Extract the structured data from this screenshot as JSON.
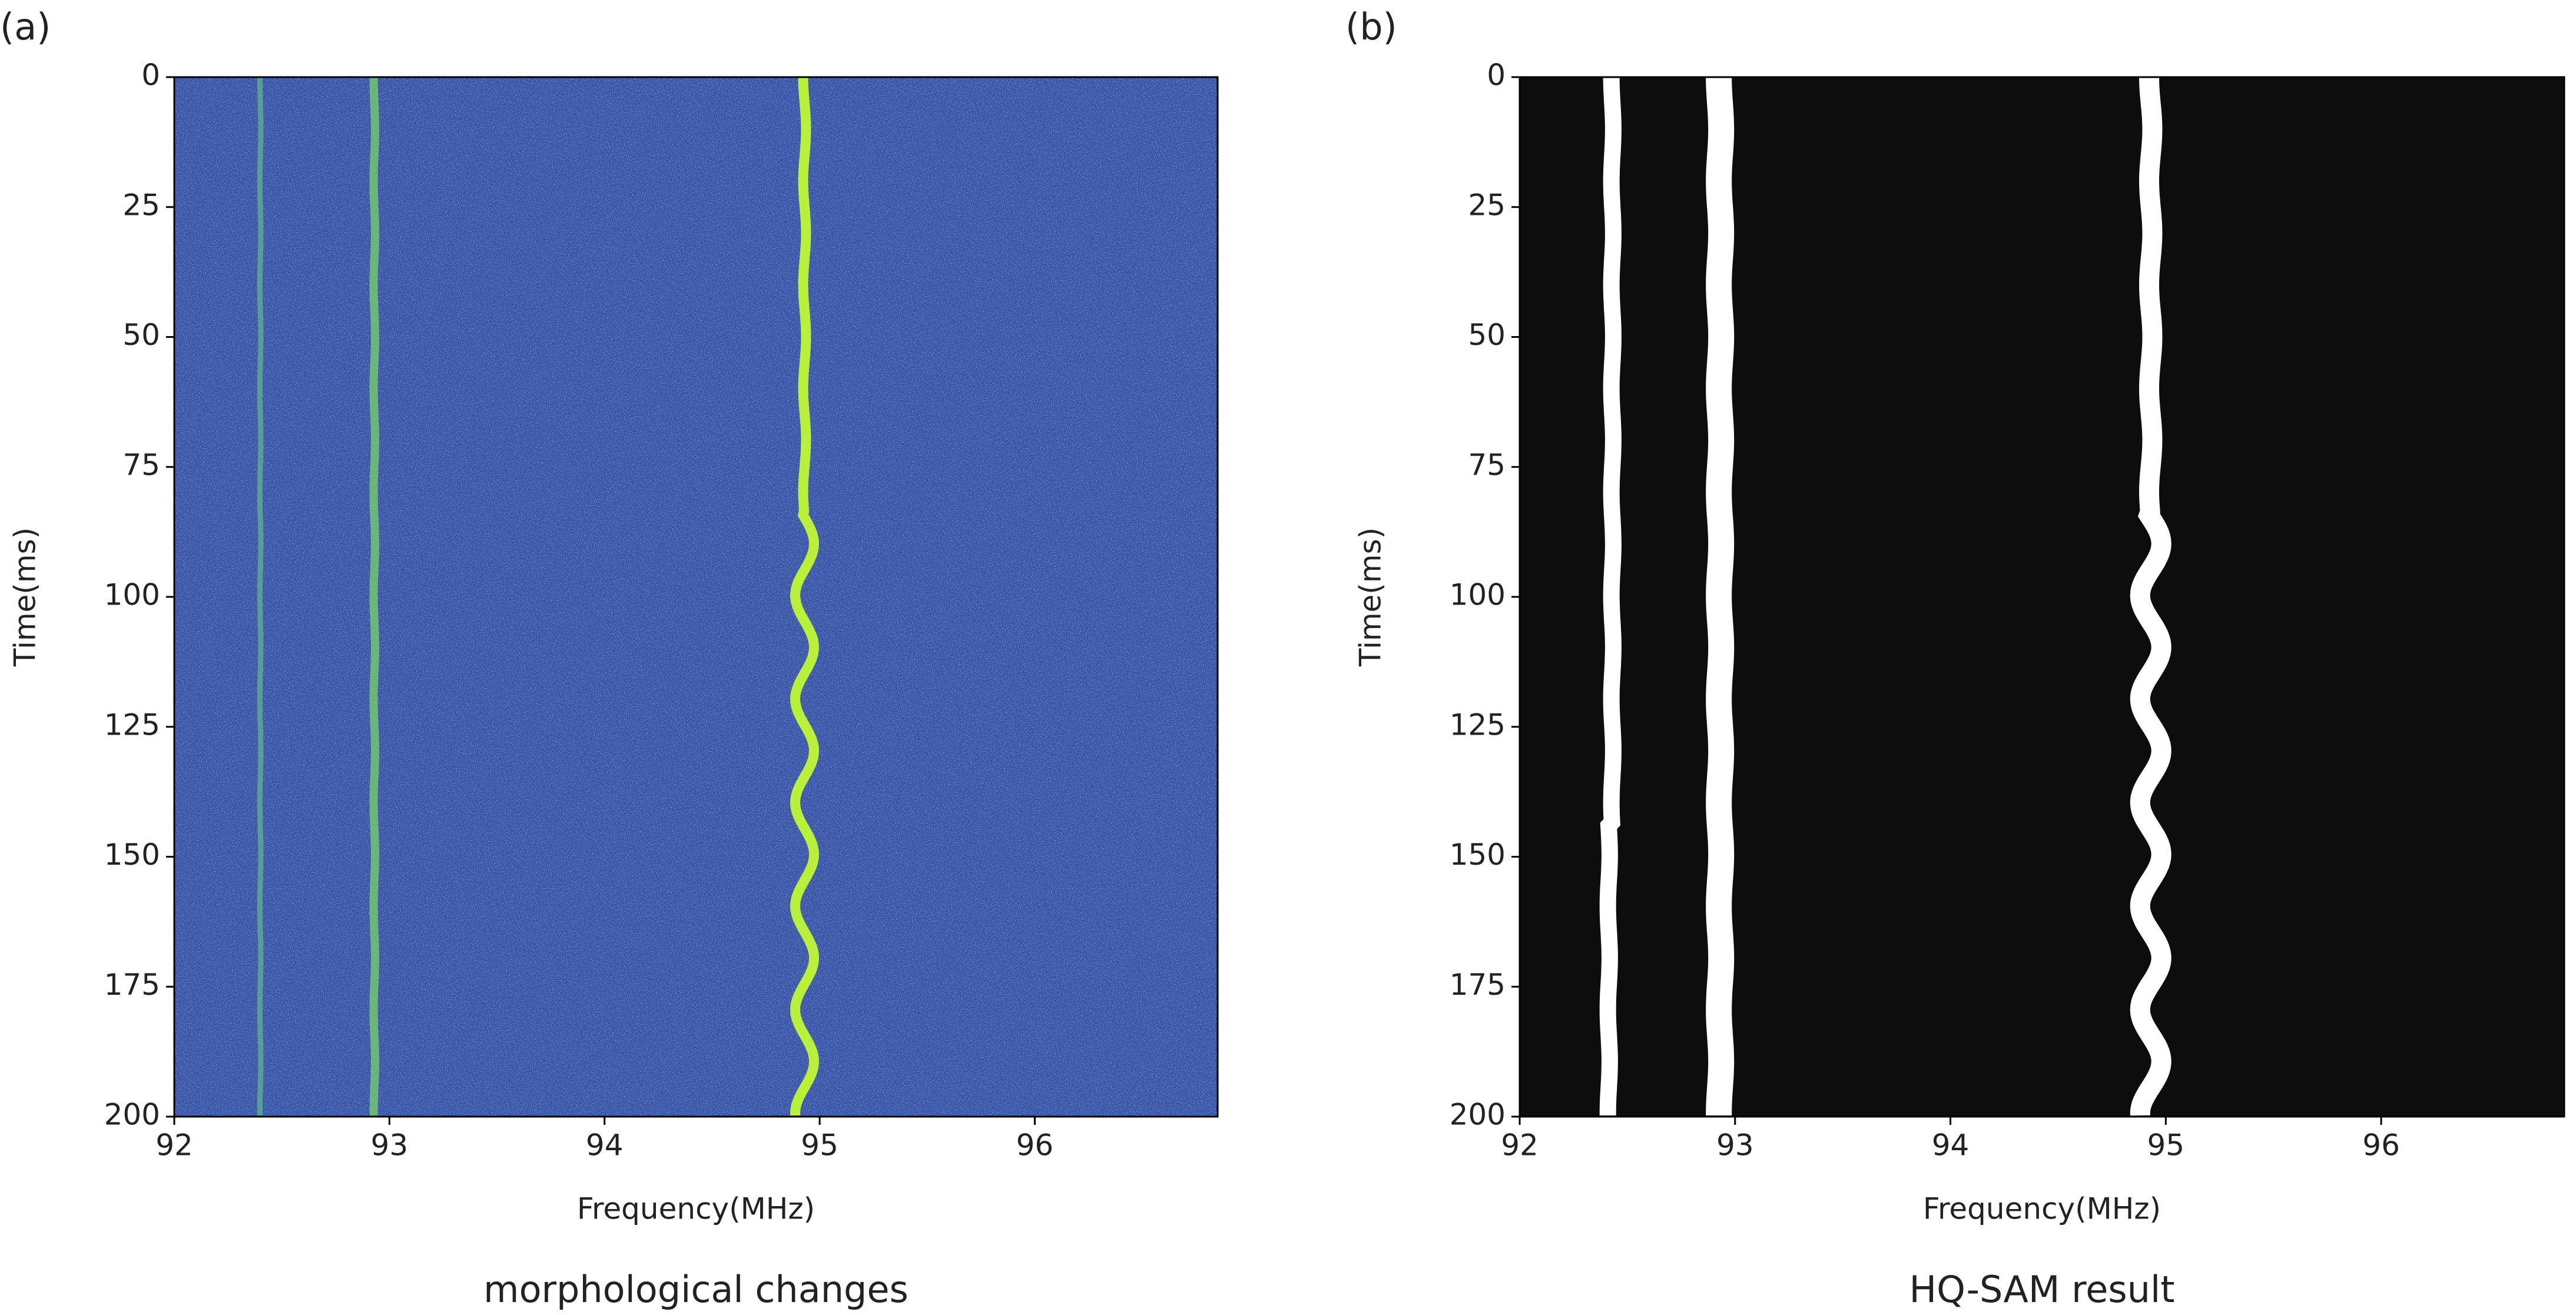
{
  "chart_data": [
    {
      "type": "heatmap",
      "panel_label": "(a)",
      "caption": "morphological changes",
      "xlabel": "Frequency(MHz)",
      "ylabel": "Time(ms)",
      "xlim": [
        92,
        96.85
      ],
      "ylim": [
        200,
        0
      ],
      "xticks": [
        92,
        93,
        94,
        95,
        96
      ],
      "yticks": [
        0,
        25,
        50,
        75,
        100,
        125,
        150,
        175,
        200
      ],
      "background": "#3a52a6",
      "traces": [
        {
          "x": 92.4,
          "color": "#5fb48c"
        },
        {
          "x": 92.93,
          "color": "#79d36a"
        },
        {
          "x": 94.93,
          "color": "#b8f03a"
        }
      ]
    },
    {
      "type": "mask",
      "panel_label": "(b)",
      "caption": "HQ-SAM result",
      "xlabel": "Frequency(MHz)",
      "ylabel": "Time(ms)",
      "xlim": [
        92,
        96.85
      ],
      "ylim": [
        200,
        0
      ],
      "xticks": [
        92,
        93,
        94,
        95,
        96
      ],
      "yticks": [
        0,
        25,
        50,
        75,
        100,
        125,
        150,
        175,
        200
      ],
      "background": "#0d0d0d",
      "traces": [
        {
          "x": 92.43,
          "color": "#ffffff"
        },
        {
          "x": 92.93,
          "color": "#ffffff"
        },
        {
          "x": 94.93,
          "color": "#ffffff"
        }
      ]
    }
  ]
}
